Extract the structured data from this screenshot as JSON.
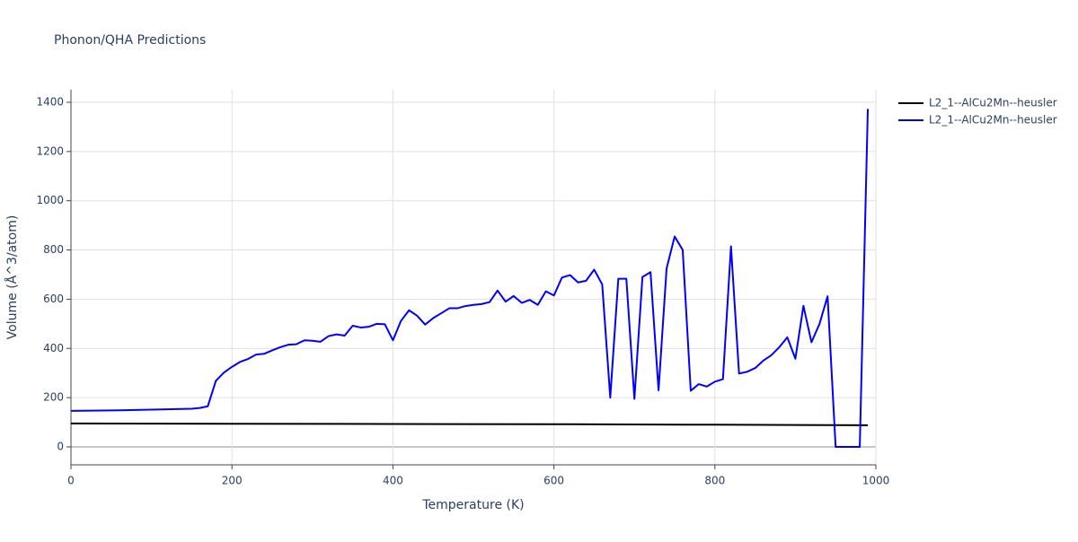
{
  "chart_data": {
    "type": "line",
    "title": "Phonon/QHA Predictions",
    "x_label": "Temperature (K)",
    "y_label": "Volume (Å^3/atom)",
    "xlim": [
      0,
      1000
    ],
    "ylim": [
      -73,
      1451
    ],
    "xticks": [
      0,
      200,
      400,
      600,
      800,
      1000
    ],
    "yticks": [
      0,
      200,
      400,
      600,
      800,
      1000,
      1200,
      1400
    ],
    "grid": true,
    "legend_position": "right",
    "series": [
      {
        "name": "L2_1--AlCu2Mn--heusler",
        "color": "#000000",
        "x": [
          0,
          200,
          400,
          600,
          800,
          990
        ],
        "values": [
          95,
          94,
          93,
          92,
          90,
          88
        ]
      },
      {
        "name": "L2_1--AlCu2Mn--heusler",
        "color": "#0000ff",
        "x": [
          0,
          50,
          100,
          150,
          160,
          170,
          180,
          190,
          200,
          210,
          220,
          230,
          240,
          250,
          260,
          270,
          280,
          290,
          300,
          310,
          320,
          330,
          340,
          350,
          360,
          370,
          380,
          390,
          400,
          410,
          420,
          430,
          440,
          450,
          460,
          470,
          480,
          490,
          500,
          510,
          520,
          530,
          540,
          550,
          560,
          570,
          580,
          590,
          600,
          610,
          620,
          630,
          640,
          650,
          660,
          670,
          680,
          690,
          700,
          710,
          720,
          730,
          740,
          750,
          760,
          770,
          780,
          790,
          800,
          810,
          820,
          830,
          840,
          850,
          860,
          870,
          880,
          890,
          900,
          910,
          920,
          930,
          940,
          950,
          960,
          970,
          980,
          990
        ],
        "values": [
          146,
          148,
          151,
          155,
          158,
          165,
          268,
          302,
          325,
          345,
          357,
          375,
          378,
          392,
          405,
          415,
          417,
          433,
          431,
          427,
          450,
          457,
          452,
          492,
          485,
          488,
          500,
          498,
          433,
          512,
          555,
          533,
          497,
          523,
          543,
          563,
          563,
          572,
          577,
          580,
          588,
          635,
          590,
          613,
          585,
          597,
          577,
          632,
          615,
          688,
          698,
          668,
          675,
          720,
          660,
          200,
          683,
          683,
          195,
          690,
          710,
          230,
          725,
          855,
          800,
          228,
          255,
          245,
          265,
          275,
          815,
          298,
          305,
          320,
          350,
          372,
          405,
          445,
          358,
          573,
          425,
          500,
          612,
          0,
          0,
          0,
          0,
          1373
        ]
      }
    ]
  }
}
